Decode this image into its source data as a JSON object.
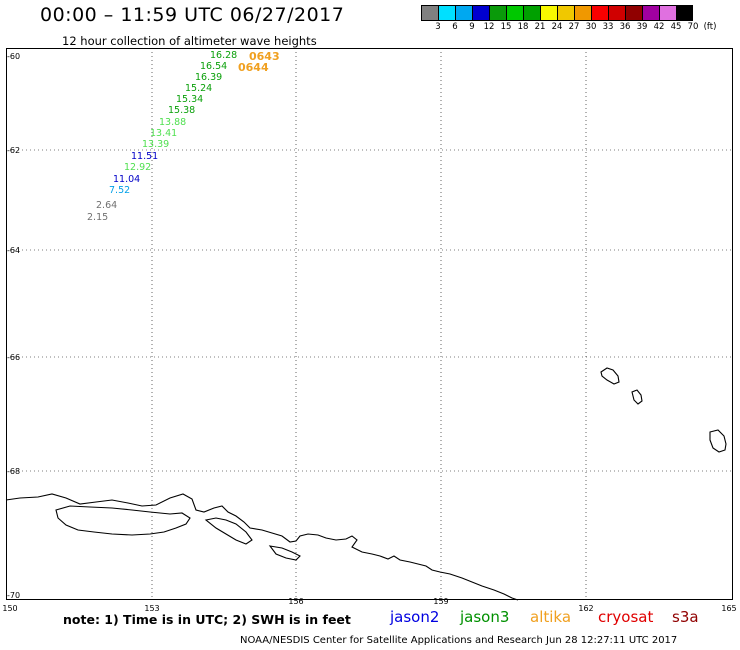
{
  "header": {
    "title": "00:00 – 11:59 UTC 06/27/2017",
    "subtitle": "12 hour collection of altimeter wave heights"
  },
  "legend": {
    "colors": [
      "#808080",
      "#00e0ff",
      "#00a8f0",
      "#0000d0",
      "#0a9a0a",
      "#00c800",
      "#00a000",
      "#f8f800",
      "#f0c800",
      "#f09800",
      "#f80000",
      "#d00000",
      "#900000",
      "#a000a0",
      "#e070e0",
      "#000000"
    ],
    "labels": [
      "3",
      "6",
      "9",
      "12",
      "15",
      "18",
      "21",
      "24",
      "27",
      "30",
      "33",
      "36",
      "39",
      "42",
      "45",
      "70",
      "(ft)"
    ]
  },
  "axes": {
    "lat_labels": [
      "-60",
      "-62",
      "-64",
      "-66",
      "-68",
      "-70"
    ],
    "lon_labels": [
      "150",
      "153",
      "156",
      "159",
      "162",
      "165"
    ]
  },
  "observations": [
    {
      "value": "16.28",
      "color": "#0aa00a"
    },
    {
      "value": "16.54",
      "color": "#0aa00a"
    },
    {
      "value": "16.39",
      "color": "#0aa00a"
    },
    {
      "value": "15.24",
      "color": "#0aa00a"
    },
    {
      "value": "15.34",
      "color": "#0aa00a"
    },
    {
      "value": "15.38",
      "color": "#0aa00a"
    },
    {
      "value": "13.88",
      "color": "#50e050"
    },
    {
      "value": "13.41",
      "color": "#50e050"
    },
    {
      "value": "13.39",
      "color": "#50e050"
    },
    {
      "value": "11.51",
      "color": "#0000c8"
    },
    {
      "value": "12.92",
      "color": "#50e050"
    },
    {
      "value": "11.04",
      "color": "#0000c8"
    },
    {
      "value": "7.52",
      "color": "#00a0e8"
    },
    {
      "value": "2.64",
      "color": "#707070"
    },
    {
      "value": "2.15",
      "color": "#707070"
    }
  ],
  "pass_times": [
    "0643",
    "0644"
  ],
  "footer": {
    "note": "note: 1) Time is in UTC; 2) SWH is in feet",
    "satellites": [
      {
        "name": "jason2",
        "color": "#0000e0"
      },
      {
        "name": "jason3",
        "color": "#009000"
      },
      {
        "name": "altika",
        "color": "#f0a020"
      },
      {
        "name": "cryosat",
        "color": "#e00000"
      },
      {
        "name": "s3a",
        "color": "#900000"
      }
    ],
    "credit": "NOAA/NESDIS Center for Satellite Applications and Research    Jun 28 12:27:11 UTC 2017"
  }
}
